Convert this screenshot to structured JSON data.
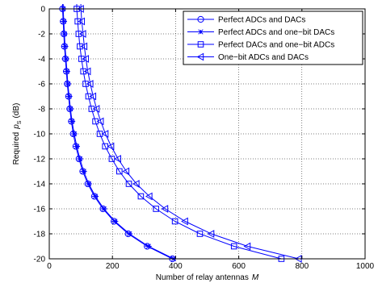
{
  "chart_data": {
    "type": "line",
    "xlabel": "Number of relay antennas",
    "xlabel_var": "M",
    "ylabel": "Required",
    "ylabel_var": "p",
    "ylabel_sub": "S",
    "ylabel_unit": "(dB)",
    "xlim": [
      0,
      1000
    ],
    "ylim": [
      -20,
      0
    ],
    "xticks": [
      "0",
      "200",
      "400",
      "600",
      "800",
      "1000"
    ],
    "yticks": [
      "0",
      "-2",
      "-4",
      "-6",
      "-8",
      "-10",
      "-12",
      "-14",
      "-16",
      "-18",
      "-20"
    ],
    "grid": true,
    "legend_position": "top-right",
    "color": "#0000ff",
    "series": [
      {
        "name": "Perfect ADCs and DACs",
        "marker": "circle",
        "points": [
          [
            42,
            0
          ],
          [
            44,
            -1
          ],
          [
            46,
            -2
          ],
          [
            48,
            -3
          ],
          [
            51,
            -4
          ],
          [
            54,
            -5
          ],
          [
            57,
            -6
          ],
          [
            61,
            -7
          ],
          [
            65,
            -8
          ],
          [
            70,
            -9
          ],
          [
            76,
            -10
          ],
          [
            84,
            -11
          ],
          [
            94,
            -12
          ],
          [
            106,
            -13
          ],
          [
            122,
            -14
          ],
          [
            143,
            -15
          ],
          [
            170,
            -16
          ],
          [
            205,
            -17
          ],
          [
            250,
            -18
          ],
          [
            310,
            -19
          ],
          [
            390,
            -20
          ]
        ]
      },
      {
        "name": "Perfect ADCs and one−bit DACs",
        "marker": "asterisk",
        "points": [
          [
            44,
            0
          ],
          [
            46,
            -1
          ],
          [
            48,
            -2
          ],
          [
            50,
            -3
          ],
          [
            53,
            -4
          ],
          [
            56,
            -5
          ],
          [
            59,
            -6
          ],
          [
            63,
            -7
          ],
          [
            67,
            -8
          ],
          [
            72,
            -9
          ],
          [
            79,
            -10
          ],
          [
            87,
            -11
          ],
          [
            97,
            -12
          ],
          [
            109,
            -13
          ],
          [
            125,
            -14
          ],
          [
            146,
            -15
          ],
          [
            173,
            -16
          ],
          [
            208,
            -17
          ],
          [
            254,
            -18
          ],
          [
            314,
            -19
          ],
          [
            394,
            -20
          ]
        ]
      },
      {
        "name": "Perfect DACs and one−bit ADCs",
        "marker": "square",
        "points": [
          [
            87,
            0
          ],
          [
            90,
            -1
          ],
          [
            93,
            -2
          ],
          [
            97,
            -3
          ],
          [
            102,
            -4
          ],
          [
            108,
            -5
          ],
          [
            115,
            -6
          ],
          [
            124,
            -7
          ],
          [
            134,
            -8
          ],
          [
            146,
            -9
          ],
          [
            160,
            -10
          ],
          [
            177,
            -11
          ],
          [
            198,
            -12
          ],
          [
            222,
            -13
          ],
          [
            252,
            -14
          ],
          [
            290,
            -15
          ],
          [
            338,
            -16
          ],
          [
            398,
            -17
          ],
          [
            477,
            -18
          ],
          [
            585,
            -19
          ],
          [
            735,
            -20
          ]
        ]
      },
      {
        "name": "One−bit ADCs and DACs",
        "marker": "triangle-left",
        "points": [
          [
            100,
            0
          ],
          [
            103,
            -1
          ],
          [
            107,
            -2
          ],
          [
            111,
            -3
          ],
          [
            116,
            -4
          ],
          [
            122,
            -5
          ],
          [
            130,
            -6
          ],
          [
            139,
            -7
          ],
          [
            150,
            -8
          ],
          [
            163,
            -9
          ],
          [
            178,
            -10
          ],
          [
            196,
            -11
          ],
          [
            218,
            -12
          ],
          [
            244,
            -13
          ],
          [
            276,
            -14
          ],
          [
            317,
            -15
          ],
          [
            367,
            -16
          ],
          [
            430,
            -17
          ],
          [
            513,
            -18
          ],
          [
            628,
            -19
          ],
          [
            790,
            -20
          ]
        ]
      }
    ]
  }
}
